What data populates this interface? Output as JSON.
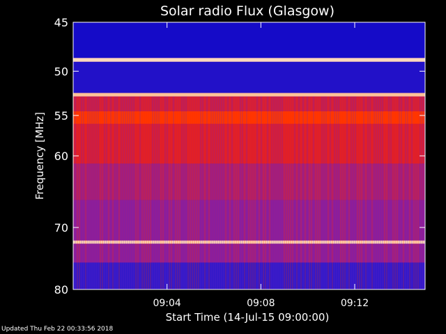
{
  "chart_data": {
    "type": "heatmap",
    "title": "Solar radio Flux (Glasgow)",
    "ylabel": "Frequency [MHz]",
    "xlabel": "Start Time (14-Jul-15 09:00:00)",
    "xlim_minutes": [
      0,
      15
    ],
    "ylim_mhz": [
      45,
      80
    ],
    "y_scale": "log",
    "x_ticks": [
      {
        "minute": 4,
        "label": "09:04"
      },
      {
        "minute": 8,
        "label": "09:08"
      },
      {
        "minute": 12,
        "label": "09:12"
      }
    ],
    "y_ticks": [
      {
        "mhz": 45,
        "label": "45"
      },
      {
        "mhz": 50,
        "label": "50"
      },
      {
        "mhz": 55,
        "label": "55"
      },
      {
        "mhz": 60,
        "label": "60"
      },
      {
        "mhz": 70,
        "label": "70"
      },
      {
        "mhz": 80,
        "label": "80"
      }
    ],
    "colormap": [
      "#0000c8",
      "#3c1ec8",
      "#8c1e9c",
      "#c81e4a",
      "#ff1e00",
      "#ff6400",
      "#ffc8a0",
      "#ffffff"
    ],
    "intensity_bands": [
      {
        "mhz_from": 45.0,
        "mhz_to": 48.6,
        "level": 0.05
      },
      {
        "mhz_from": 48.6,
        "mhz_to": 49.0,
        "level": 0.9
      },
      {
        "mhz_from": 49.0,
        "mhz_to": 52.4,
        "level": 0.08
      },
      {
        "mhz_from": 52.4,
        "mhz_to": 52.8,
        "level": 0.85
      },
      {
        "mhz_from": 52.8,
        "mhz_to": 54.5,
        "level": 0.45
      },
      {
        "mhz_from": 54.5,
        "mhz_to": 56.0,
        "level": 0.62
      },
      {
        "mhz_from": 56.0,
        "mhz_to": 61.0,
        "level": 0.48
      },
      {
        "mhz_from": 61.0,
        "mhz_to": 66.0,
        "level": 0.36
      },
      {
        "mhz_from": 66.0,
        "mhz_to": 72.0,
        "level": 0.3
      },
      {
        "mhz_from": 72.0,
        "mhz_to": 72.5,
        "level": 0.88
      },
      {
        "mhz_from": 72.5,
        "mhz_to": 75.5,
        "level": 0.3
      },
      {
        "mhz_from": 75.5,
        "mhz_to": 80.0,
        "level": 0.12
      }
    ]
  },
  "footer": "Updated Thu Feb 22 00:33:56 2018"
}
